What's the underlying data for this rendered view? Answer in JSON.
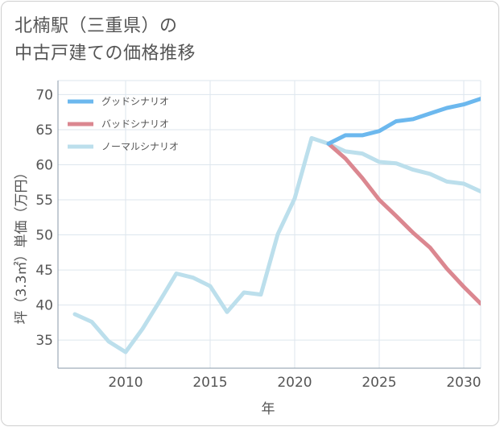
{
  "title": {
    "line1": "北楠駅（三重県）の",
    "line2": "中古戸建ての価格推移"
  },
  "colors": {
    "good": "#6cb8ee",
    "bad": "#db8790",
    "normal": "#bcdfec",
    "grid": "#dde6ee",
    "axis": "#8a9aa8"
  },
  "chart_data": {
    "type": "line",
    "title": "北楠駅（三重県）の中古戸建ての価格推移",
    "xlabel": "年",
    "ylabel": "坪（3.3㎡）単価（万円）",
    "xlim": [
      2006,
      2031
    ],
    "ylim": [
      31,
      72
    ],
    "xticks": [
      2010,
      2015,
      2020,
      2025,
      2030
    ],
    "yticks": [
      35,
      40,
      45,
      50,
      55,
      60,
      65,
      70
    ],
    "legend_position": "top-left",
    "series": [
      {
        "name": "グッドシナリオ",
        "color_key": "good",
        "x": [
          2022,
          2023,
          2024,
          2025,
          2026,
          2027,
          2028,
          2029,
          2030,
          2031
        ],
        "y": [
          63.0,
          64.2,
          64.2,
          64.8,
          66.2,
          66.5,
          67.3,
          68.1,
          68.6,
          69.4
        ]
      },
      {
        "name": "バッドシナリオ",
        "color_key": "bad",
        "x": [
          2022,
          2023,
          2024,
          2025,
          2026,
          2027,
          2028,
          2029,
          2030,
          2031
        ],
        "y": [
          63.0,
          60.9,
          58.1,
          55.0,
          52.7,
          50.3,
          48.2,
          45.2,
          42.6,
          40.2
        ]
      },
      {
        "name": "ノーマルシナリオ",
        "color_key": "normal",
        "x": [
          2007,
          2008,
          2009,
          2010,
          2011,
          2012,
          2013,
          2014,
          2015,
          2016,
          2017,
          2018,
          2019,
          2020,
          2021,
          2022,
          2023,
          2024,
          2025,
          2026,
          2027,
          2028,
          2029,
          2030,
          2031
        ],
        "y": [
          38.7,
          37.6,
          34.8,
          33.3,
          36.6,
          40.5,
          44.5,
          43.9,
          42.7,
          39.0,
          41.8,
          41.5,
          50.1,
          55.2,
          63.8,
          63.0,
          61.9,
          61.6,
          60.4,
          60.2,
          59.3,
          58.7,
          57.6,
          57.3,
          56.2
        ]
      }
    ]
  }
}
